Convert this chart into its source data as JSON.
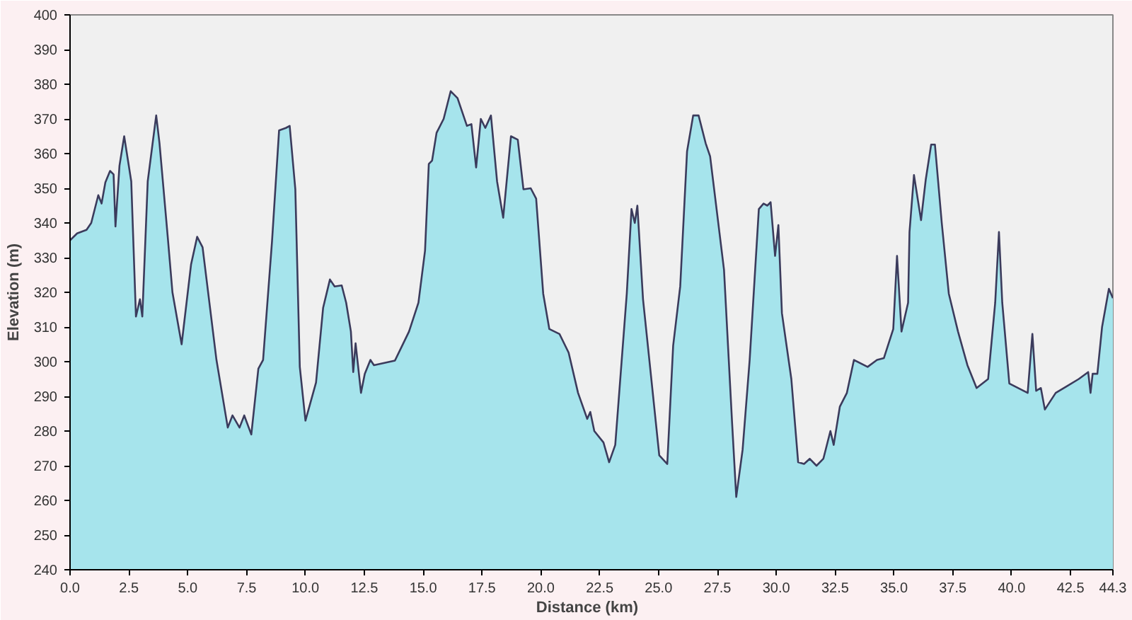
{
  "chart_data": {
    "type": "area",
    "xlabel": "Distance   (km)",
    "ylabel": "Elevation (m)",
    "xlim": [
      0,
      44.3
    ],
    "ylim": [
      240,
      400
    ],
    "xticks": [
      {
        "value": 0,
        "label": "0.0"
      },
      {
        "value": 2.5,
        "label": "2.5"
      },
      {
        "value": 5,
        "label": "5.0"
      },
      {
        "value": 7.5,
        "label": "7.5"
      },
      {
        "value": 10,
        "label": "10.0"
      },
      {
        "value": 12.5,
        "label": "12.5"
      },
      {
        "value": 15,
        "label": "15.0"
      },
      {
        "value": 17.5,
        "label": "17.5"
      },
      {
        "value": 20,
        "label": "20.0"
      },
      {
        "value": 22.5,
        "label": "22.5"
      },
      {
        "value": 25,
        "label": "25.0"
      },
      {
        "value": 27.5,
        "label": "27.5"
      },
      {
        "value": 30,
        "label": "30.0"
      },
      {
        "value": 32.5,
        "label": "32.5"
      },
      {
        "value": 35,
        "label": "35.0"
      },
      {
        "value": 37.5,
        "label": "37.5"
      },
      {
        "value": 40,
        "label": "40.0"
      },
      {
        "value": 42.5,
        "label": "42.5"
      },
      {
        "value": 44.3,
        "label": "44.3"
      }
    ],
    "yticks": [
      240,
      250,
      260,
      270,
      280,
      290,
      300,
      310,
      320,
      330,
      340,
      350,
      360,
      370,
      380,
      390,
      400
    ],
    "grid": false,
    "series": [
      {
        "color": "#a6e4ec",
        "x": [
          0,
          0.3,
          0.7,
          0.9,
          1.2,
          1.34,
          1.5,
          1.7,
          1.85,
          1.93,
          2.1,
          2.3,
          2.6,
          2.8,
          2.97,
          3.07,
          3.3,
          3.66,
          3.8,
          4.15,
          4.35,
          4.74,
          5.14,
          5.4,
          5.63,
          6.22,
          6.7,
          6.9,
          7.2,
          7.4,
          7.7,
          8.0,
          8.2,
          8.58,
          8.88,
          9.17,
          9.33,
          9.57,
          9.76,
          10.0,
          10.45,
          10.75,
          11.04,
          11.24,
          11.54,
          11.73,
          11.93,
          12.03,
          12.13,
          12.36,
          12.52,
          12.76,
          12.91,
          13.8,
          14.4,
          14.8,
          15.08,
          15.24,
          15.38,
          15.57,
          15.87,
          16.17,
          16.46,
          16.86,
          17.05,
          17.25,
          17.45,
          17.64,
          17.88,
          18.14,
          18.4,
          18.73,
          19.02,
          19.26,
          19.57,
          19.8,
          20.1,
          20.36,
          20.79,
          21.18,
          21.58,
          21.97,
          22.1,
          22.27,
          22.66,
          22.9,
          23.16,
          23.65,
          23.85,
          23.99,
          24.1,
          24.34,
          25.03,
          25.37,
          25.62,
          25.92,
          26.21,
          26.47,
          26.7,
          27.0,
          27.19,
          27.78,
          28.12,
          28.3,
          28.57,
          28.87,
          29.26,
          29.46,
          29.62,
          29.76,
          29.95,
          30.09,
          30.24,
          30.64,
          30.93,
          31.18,
          31.42,
          31.71,
          32.0,
          32.3,
          32.44,
          32.7,
          33.0,
          33.3,
          33.88,
          34.28,
          34.57,
          34.97,
          35.13,
          35.32,
          35.6,
          35.66,
          35.85,
          36.15,
          36.35,
          36.58,
          36.74,
          37.03,
          37.33,
          37.72,
          38.12,
          38.51,
          39.0,
          39.3,
          39.46,
          39.6,
          39.9,
          40.68,
          40.88,
          41.04,
          41.24,
          41.41,
          41.87,
          42.36,
          42.85,
          43.25,
          43.35,
          43.44,
          43.64,
          43.84,
          44.13,
          44.3
        ],
        "values": [
          335,
          337,
          338,
          340,
          348,
          345.6,
          351.7,
          355,
          354,
          339,
          356.5,
          365,
          352,
          313,
          318,
          313,
          352,
          371,
          363,
          336,
          320,
          305,
          328,
          336,
          333,
          300.5,
          281,
          284.5,
          281,
          284.5,
          279,
          298,
          300.5,
          334.7,
          366.7,
          367.4,
          368,
          349.7,
          298.5,
          283,
          294,
          315.5,
          323.7,
          321.7,
          322,
          317,
          308.7,
          297,
          305.3,
          291,
          296.5,
          300.5,
          299,
          300.3,
          308.7,
          317,
          332,
          357,
          358,
          366,
          370,
          378,
          376,
          368,
          368.5,
          356,
          370,
          367.4,
          371,
          352,
          341.5,
          365,
          364,
          349.7,
          350,
          347,
          319.6,
          309.4,
          308,
          302.6,
          291,
          283.5,
          285.5,
          280,
          276.7,
          271,
          276,
          319.6,
          344,
          340,
          345,
          318,
          273,
          270.5,
          304.6,
          321.7,
          360.6,
          371,
          371,
          363,
          359.2,
          326.5,
          282.8,
          261,
          274.6,
          300.5,
          344,
          345.6,
          345,
          346,
          330.5,
          339.4,
          314,
          295,
          271,
          270.5,
          272,
          270,
          272,
          280,
          276,
          287,
          291,
          300.5,
          298.5,
          300.5,
          301,
          309.4,
          330.5,
          308.7,
          317,
          337.4,
          353.8,
          340.8,
          352.5,
          362.6,
          362.6,
          340,
          319.6,
          308.7,
          299,
          292.4,
          295,
          317,
          337.4,
          317,
          293.7,
          291,
          308,
          291.6,
          292.4,
          286.2,
          291,
          293,
          295,
          297,
          291,
          296.5,
          296.5,
          310,
          321,
          318.3
        ]
      }
    ]
  }
}
